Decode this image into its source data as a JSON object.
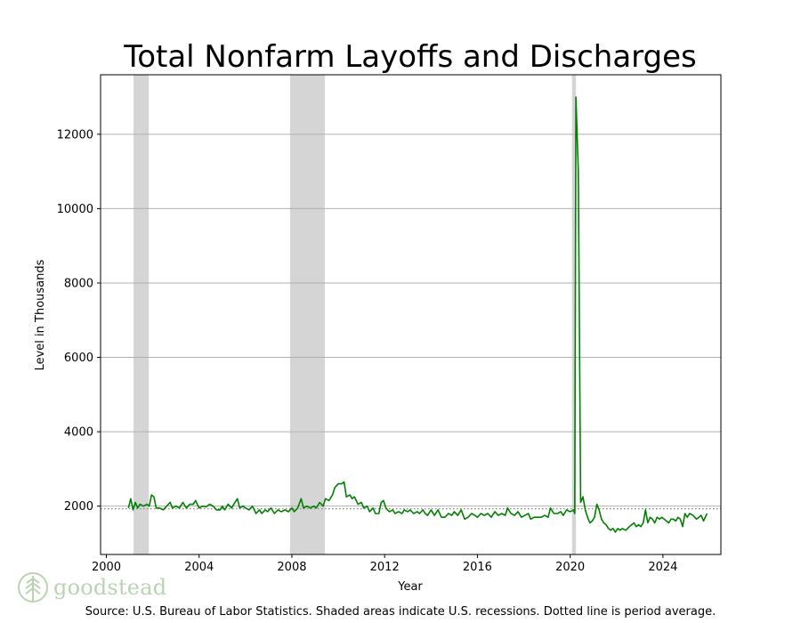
{
  "chart_data": {
    "type": "line",
    "title": "Total Nonfarm Layoffs and Discharges",
    "xlabel": "Year",
    "ylabel": "Level in Thousands",
    "xlim": [
      1999.75,
      2026.5
    ],
    "ylim": [
      700,
      13600
    ],
    "x_ticks": [
      2000,
      2004,
      2008,
      2012,
      2016,
      2020,
      2024
    ],
    "y_ticks": [
      2000,
      4000,
      6000,
      8000,
      10000,
      12000
    ],
    "grid": "horizontal",
    "average_line": 1930,
    "recessions": [
      {
        "start": 2001.17,
        "end": 2001.83
      },
      {
        "start": 2007.92,
        "end": 2009.42
      },
      {
        "start": 2020.08,
        "end": 2020.25
      }
    ],
    "series": [
      {
        "color": "#008000",
        "points": [
          [
            2000.95,
            1950
          ],
          [
            2001.05,
            2200
          ],
          [
            2001.15,
            1900
          ],
          [
            2001.25,
            2100
          ],
          [
            2001.35,
            1950
          ],
          [
            2001.45,
            2050
          ],
          [
            2001.6,
            2000
          ],
          [
            2001.75,
            2050
          ],
          [
            2001.85,
            2000
          ],
          [
            2001.95,
            2300
          ],
          [
            2002.05,
            2250
          ],
          [
            2002.15,
            1950
          ],
          [
            2002.3,
            1950
          ],
          [
            2002.45,
            1900
          ],
          [
            2002.6,
            2000
          ],
          [
            2002.75,
            2100
          ],
          [
            2002.85,
            1950
          ],
          [
            2003.0,
            2000
          ],
          [
            2003.15,
            1950
          ],
          [
            2003.3,
            2100
          ],
          [
            2003.45,
            1950
          ],
          [
            2003.6,
            2050
          ],
          [
            2003.75,
            2050
          ],
          [
            2003.85,
            2150
          ],
          [
            2004.0,
            1950
          ],
          [
            2004.15,
            2000
          ],
          [
            2004.3,
            1980
          ],
          [
            2004.45,
            2050
          ],
          [
            2004.6,
            2000
          ],
          [
            2004.75,
            1900
          ],
          [
            2004.9,
            1900
          ],
          [
            2005.0,
            2000
          ],
          [
            2005.1,
            1900
          ],
          [
            2005.25,
            2050
          ],
          [
            2005.4,
            1950
          ],
          [
            2005.5,
            2050
          ],
          [
            2005.65,
            2200
          ],
          [
            2005.75,
            1950
          ],
          [
            2005.9,
            2000
          ],
          [
            2006.0,
            1950
          ],
          [
            2006.15,
            1900
          ],
          [
            2006.3,
            2000
          ],
          [
            2006.45,
            1800
          ],
          [
            2006.6,
            1900
          ],
          [
            2006.7,
            1800
          ],
          [
            2006.85,
            1900
          ],
          [
            2006.95,
            1850
          ],
          [
            2007.1,
            1950
          ],
          [
            2007.25,
            1800
          ],
          [
            2007.4,
            1900
          ],
          [
            2007.55,
            1850
          ],
          [
            2007.7,
            1900
          ],
          [
            2007.85,
            1850
          ],
          [
            2008.0,
            1950
          ],
          [
            2008.1,
            1850
          ],
          [
            2008.25,
            1950
          ],
          [
            2008.4,
            2200
          ],
          [
            2008.5,
            1950
          ],
          [
            2008.65,
            2000
          ],
          [
            2008.8,
            1950
          ],
          [
            2008.95,
            2000
          ],
          [
            2009.05,
            1950
          ],
          [
            2009.2,
            2100
          ],
          [
            2009.35,
            2000
          ],
          [
            2009.45,
            2200
          ],
          [
            2009.6,
            2150
          ],
          [
            2009.75,
            2300
          ],
          [
            2009.85,
            2500
          ],
          [
            2010.0,
            2600
          ],
          [
            2010.15,
            2600
          ],
          [
            2010.25,
            2650
          ],
          [
            2010.35,
            2250
          ],
          [
            2010.5,
            2300
          ],
          [
            2010.6,
            2200
          ],
          [
            2010.7,
            2250
          ],
          [
            2010.85,
            2050
          ],
          [
            2011.0,
            2100
          ],
          [
            2011.1,
            1950
          ],
          [
            2011.25,
            2000
          ],
          [
            2011.35,
            1850
          ],
          [
            2011.5,
            1950
          ],
          [
            2011.6,
            1800
          ],
          [
            2011.75,
            1800
          ],
          [
            2011.85,
            2100
          ],
          [
            2011.95,
            2150
          ],
          [
            2012.05,
            1950
          ],
          [
            2012.2,
            1850
          ],
          [
            2012.35,
            1900
          ],
          [
            2012.45,
            1800
          ],
          [
            2012.6,
            1850
          ],
          [
            2012.75,
            1800
          ],
          [
            2012.85,
            1900
          ],
          [
            2013.0,
            1850
          ],
          [
            2013.1,
            1900
          ],
          [
            2013.25,
            1800
          ],
          [
            2013.4,
            1850
          ],
          [
            2013.5,
            1800
          ],
          [
            2013.65,
            1900
          ],
          [
            2013.75,
            1800
          ],
          [
            2013.85,
            1750
          ],
          [
            2014.0,
            1900
          ],
          [
            2014.15,
            1750
          ],
          [
            2014.3,
            1900
          ],
          [
            2014.45,
            1700
          ],
          [
            2014.6,
            1700
          ],
          [
            2014.75,
            1800
          ],
          [
            2014.9,
            1750
          ],
          [
            2015.0,
            1850
          ],
          [
            2015.15,
            1750
          ],
          [
            2015.3,
            1900
          ],
          [
            2015.45,
            1650
          ],
          [
            2015.6,
            1700
          ],
          [
            2015.75,
            1800
          ],
          [
            2015.9,
            1750
          ],
          [
            2016.0,
            1700
          ],
          [
            2016.15,
            1800
          ],
          [
            2016.3,
            1750
          ],
          [
            2016.45,
            1800
          ],
          [
            2016.6,
            1700
          ],
          [
            2016.75,
            1850
          ],
          [
            2016.9,
            1750
          ],
          [
            2017.05,
            1800
          ],
          [
            2017.2,
            1750
          ],
          [
            2017.3,
            1950
          ],
          [
            2017.45,
            1800
          ],
          [
            2017.6,
            1750
          ],
          [
            2017.75,
            1850
          ],
          [
            2017.9,
            1700
          ],
          [
            2018.05,
            1750
          ],
          [
            2018.2,
            1800
          ],
          [
            2018.3,
            1650
          ],
          [
            2018.45,
            1700
          ],
          [
            2018.6,
            1700
          ],
          [
            2018.75,
            1700
          ],
          [
            2018.9,
            1750
          ],
          [
            2019.05,
            1700
          ],
          [
            2019.15,
            1950
          ],
          [
            2019.3,
            1800
          ],
          [
            2019.45,
            1800
          ],
          [
            2019.6,
            1850
          ],
          [
            2019.7,
            1750
          ],
          [
            2019.85,
            1900
          ],
          [
            2020.0,
            1850
          ],
          [
            2020.15,
            1900
          ],
          [
            2020.2,
            1800
          ],
          [
            2020.25,
            13000
          ],
          [
            2020.35,
            11000
          ],
          [
            2020.45,
            2100
          ],
          [
            2020.55,
            2250
          ],
          [
            2020.65,
            1900
          ],
          [
            2020.75,
            1700
          ],
          [
            2020.85,
            1550
          ],
          [
            2020.95,
            1600
          ],
          [
            2021.05,
            1700
          ],
          [
            2021.15,
            2050
          ],
          [
            2021.25,
            1900
          ],
          [
            2021.35,
            1650
          ],
          [
            2021.45,
            1550
          ],
          [
            2021.55,
            1500
          ],
          [
            2021.65,
            1400
          ],
          [
            2021.75,
            1350
          ],
          [
            2021.85,
            1400
          ],
          [
            2021.95,
            1300
          ],
          [
            2022.05,
            1400
          ],
          [
            2022.15,
            1350
          ],
          [
            2022.25,
            1400
          ],
          [
            2022.4,
            1350
          ],
          [
            2022.55,
            1450
          ],
          [
            2022.65,
            1500
          ],
          [
            2022.75,
            1550
          ],
          [
            2022.85,
            1450
          ],
          [
            2022.95,
            1500
          ],
          [
            2023.05,
            1450
          ],
          [
            2023.15,
            1550
          ],
          [
            2023.25,
            1900
          ],
          [
            2023.35,
            1550
          ],
          [
            2023.45,
            1700
          ],
          [
            2023.55,
            1650
          ],
          [
            2023.65,
            1550
          ],
          [
            2023.75,
            1700
          ],
          [
            2023.85,
            1650
          ],
          [
            2023.95,
            1700
          ],
          [
            2024.05,
            1650
          ],
          [
            2024.15,
            1600
          ],
          [
            2024.25,
            1550
          ],
          [
            2024.35,
            1650
          ],
          [
            2024.45,
            1650
          ],
          [
            2024.55,
            1600
          ],
          [
            2024.65,
            1700
          ],
          [
            2024.75,
            1650
          ],
          [
            2024.85,
            1450
          ],
          [
            2024.95,
            1800
          ],
          [
            2025.05,
            1700
          ],
          [
            2025.15,
            1800
          ],
          [
            2025.3,
            1750
          ],
          [
            2025.45,
            1650
          ],
          [
            2025.55,
            1700
          ],
          [
            2025.65,
            1750
          ],
          [
            2025.75,
            1600
          ],
          [
            2025.9,
            1800
          ]
        ]
      }
    ]
  },
  "footer": {
    "source": "Source: U.S. Bureau of Labor Statistics. Shaded areas indicate U.S. recessions. Dotted line is period average.",
    "logo_text": "goodstead",
    "logo_icon": "tree-icon"
  },
  "colors": {
    "line": "#008000",
    "recession": "#d5d5d5",
    "grid": "#b0b0b0",
    "average": "#888888",
    "logo": "#b9d3b4"
  }
}
